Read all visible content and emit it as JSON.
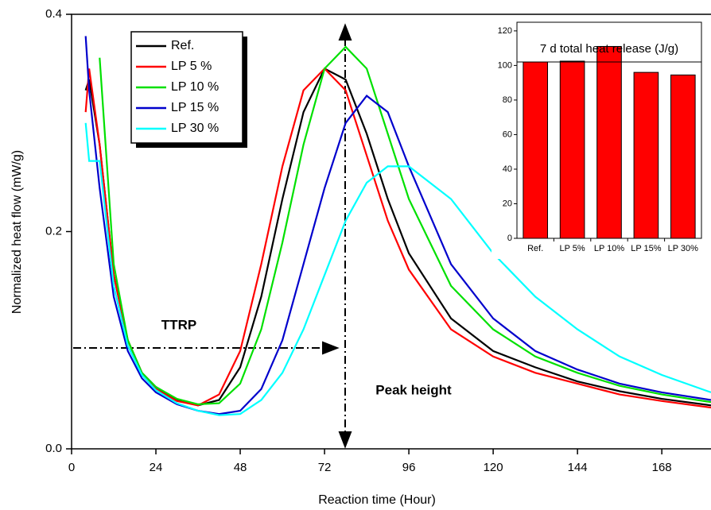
{
  "chart_data": [
    {
      "type": "line",
      "x_label": "Reaction time (Hour)",
      "y_label": "Normalized heat flow (mW/g)",
      "annotations": [
        "TTRP",
        "Peak height"
      ],
      "x": [
        4,
        5,
        8,
        12,
        16,
        20,
        24,
        30,
        36,
        42,
        48,
        54,
        60,
        66,
        72,
        78,
        84,
        90,
        96,
        108,
        120,
        132,
        144,
        156,
        168,
        182
      ],
      "series": [
        {
          "name": "Ref.",
          "color": "#000000",
          "values": [
            0.33,
            0.34,
            0.28,
            0.16,
            0.1,
            0.07,
            0.057,
            0.045,
            0.04,
            0.045,
            0.075,
            0.14,
            0.23,
            0.31,
            0.35,
            0.34,
            0.29,
            0.23,
            0.18,
            0.12,
            0.09,
            0.075,
            0.062,
            0.053,
            0.046,
            0.04
          ]
        },
        {
          "name": "LP  5 %",
          "color": "#ff0000",
          "values": [
            0.31,
            0.35,
            0.28,
            0.16,
            0.1,
            0.07,
            0.055,
            0.044,
            0.04,
            0.05,
            0.09,
            0.17,
            0.26,
            0.33,
            0.35,
            0.33,
            0.27,
            0.21,
            0.165,
            0.11,
            0.085,
            0.07,
            0.06,
            0.05,
            0.044,
            0.038
          ]
        },
        {
          "name": "LP 10 %",
          "color": "#00e000",
          "values": [
            null,
            null,
            0.36,
            0.17,
            0.1,
            0.07,
            0.057,
            0.046,
            0.041,
            0.042,
            0.06,
            0.11,
            0.19,
            0.28,
            0.35,
            0.37,
            0.35,
            0.29,
            0.23,
            0.15,
            0.11,
            0.085,
            0.07,
            0.058,
            0.05,
            0.043
          ]
        },
        {
          "name": "LP 15 %",
          "color": "#0000cc",
          "values": [
            0.38,
            0.33,
            0.24,
            0.14,
            0.09,
            0.065,
            0.052,
            0.041,
            0.035,
            0.032,
            0.035,
            0.055,
            0.1,
            0.17,
            0.24,
            0.3,
            0.325,
            0.31,
            0.26,
            0.17,
            0.12,
            0.09,
            0.073,
            0.06,
            0.052,
            0.045
          ]
        },
        {
          "name": "LP 30 %",
          "color": "#00ffff",
          "values": [
            0.3,
            0.265,
            0.265,
            0.15,
            0.095,
            0.068,
            0.054,
            0.042,
            0.035,
            0.031,
            0.032,
            0.045,
            0.07,
            0.11,
            0.16,
            0.21,
            0.245,
            0.26,
            0.26,
            0.23,
            0.18,
            0.14,
            0.11,
            0.085,
            0.068,
            0.052
          ]
        }
      ],
      "xlim": [
        0,
        182
      ],
      "ylim": [
        0,
        0.4
      ],
      "xticks": [
        0,
        24,
        48,
        72,
        96,
        120,
        144,
        168
      ],
      "yticks": [
        {
          "value": 0,
          "label": "0.0"
        },
        0.2,
        0.4
      ],
      "legend": "upper left"
    },
    {
      "type": "bar",
      "title": "7 d total heat release (J/g)",
      "categories": [
        "Ref.",
        "LP 5%",
        "LP 10%",
        "LP 15%",
        "LP 30%"
      ],
      "values": [
        102,
        102.5,
        111,
        96,
        94.5
      ],
      "color": "#ff0000",
      "ylim": [
        0,
        125
      ],
      "yticks": [
        0,
        20,
        40,
        60,
        80,
        100,
        120
      ]
    }
  ]
}
